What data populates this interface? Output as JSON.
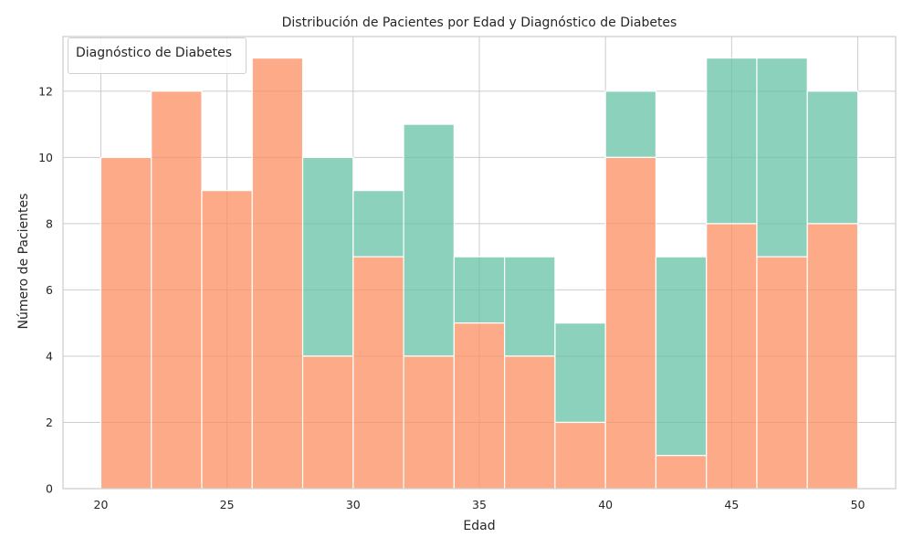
{
  "chart_data": {
    "type": "bar",
    "stacked": true,
    "title": "Distribución de Pacientes por Edad y Diagnóstico de Diabetes",
    "xlabel": "Edad",
    "ylabel": "Número de Pacientes",
    "legend_title": "Diagnóstico de Diabetes",
    "legend_placement": "top-left",
    "grid": true,
    "xlim": [
      18.5,
      51.5
    ],
    "ylim": [
      0,
      13.65
    ],
    "x_ticks": [
      20,
      25,
      30,
      35,
      40,
      45,
      50
    ],
    "y_ticks": [
      0,
      2,
      4,
      6,
      8,
      10,
      12
    ],
    "bin_edges": [
      20,
      22,
      24,
      26,
      28,
      30,
      32,
      34,
      36,
      38,
      40,
      42,
      44,
      46,
      48,
      50
    ],
    "series": [
      {
        "color": "#fc8d62",
        "values": [
          10,
          12,
          9,
          13,
          4,
          7,
          4,
          5,
          4,
          2,
          10,
          1,
          8,
          7,
          8
        ]
      },
      {
        "color": "#66c2a5",
        "values": [
          0,
          0,
          0,
          0,
          6,
          2,
          7,
          2,
          3,
          3,
          2,
          6,
          5,
          6,
          4
        ]
      }
    ]
  }
}
